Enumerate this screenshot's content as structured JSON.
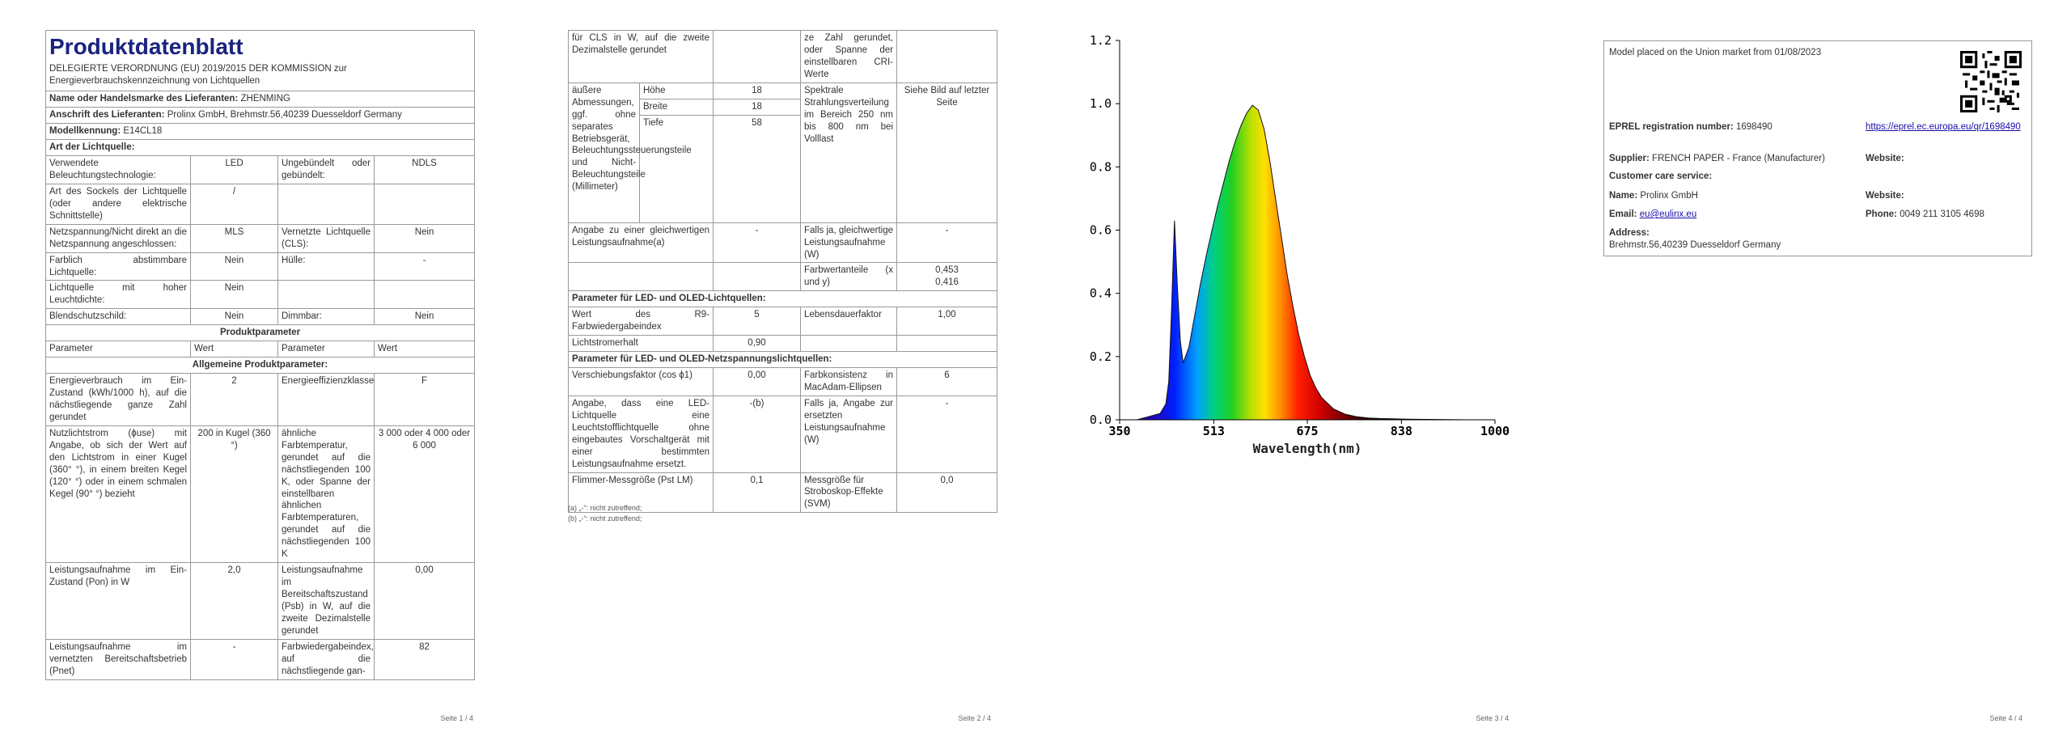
{
  "page1": {
    "title": "Produktdatenblatt",
    "subtitle": "DELEGIERTE VERORDNUNG (EU) 2019/2015 DER KOMMISSION zur Energieverbrauchskennzeichnung von Lichtquellen",
    "supplier_name_label": "Name oder Handelsmarke des Lieferanten:",
    "supplier_name_value": "ZHENMING",
    "supplier_address_label": "Anschrift des Lieferanten:",
    "supplier_address_value": "Prolinx GmbH, Brehmstr.56,40239 Duesseldorf Germany",
    "model_label": "Modellkennung:",
    "model_value": "E14CL18",
    "type_heading": "Art der Lichtquelle:",
    "rows": [
      [
        "Verwendete Beleuchtungstechnologie:",
        "LED",
        "Ungebündelt oder gebündelt:",
        "NDLS"
      ],
      [
        "Art des Sockels der Lichtquelle (oder andere elektrische Schnittstelle)",
        "/",
        "",
        ""
      ],
      [
        "Netzspannung/Nicht direkt an die Netzspannung angeschlossen:",
        "MLS",
        "Vernetzte Lichtquelle (CLS):",
        "Nein"
      ],
      [
        "Farblich abstimmbare Lichtquelle:",
        "Nein",
        "Hülle:",
        "-"
      ],
      [
        "Lichtquelle mit hoher Leuchtdichte:",
        "Nein",
        "",
        ""
      ],
      [
        "Blendschutzschild:",
        "Nein",
        "Dimmbar:",
        "Nein"
      ]
    ],
    "product_params_heading": "Produktparameter",
    "col_headers": [
      "Parameter",
      "Wert",
      "Parameter",
      "Wert"
    ],
    "general_heading": "Allgemeine Produktparameter:",
    "params": [
      [
        "Energieverbrauch im Ein-Zustand (kWh/1000 h), auf die nächstliegende ganze Zahl gerundet",
        "2",
        "Energieeffizienzklasse",
        "F"
      ],
      [
        "Nutzlichtstrom (ϕuse) mit Angabe, ob sich der Wert auf den Lichtstrom in einer Kugel (360° °), in einem breiten Kegel (120° °) oder in einem schmalen Kegel (90° °) bezieht",
        "200 in Kugel (360 °)",
        "ähnliche Farbtemperatur, gerundet auf die nächstliegenden 100 K, oder Spanne der einstellbaren ähnlichen Farbtemperaturen, gerundet auf die nächstliegenden 100 K",
        "3 000 oder 4 000 oder 6 000"
      ],
      [
        "Leistungsaufnahme im Ein-Zustand (Pon) in W",
        "2,0",
        "Leistungsaufnahme im Bereitschaftszustand (Psb) in W, auf die zweite Dezimalstelle gerundet",
        "0,00"
      ],
      [
        "Leistungsaufnahme im vernetzten Bereitschaftsbetrieb (Pnet)",
        "-",
        "Farbwiedergabeindex, auf die nächstliegende gan-",
        "82"
      ]
    ],
    "page_number": "Seite 1 / 4"
  },
  "page2": {
    "top_left": "für CLS in W, auf die zweite Dezimalstelle gerundet",
    "top_right": "ze Zahl gerundet, oder Spanne der einstellbaren CRI-Werte",
    "dims_label": "äußere Abmessungen, ggf. ohne separates Betriebsgerät, Beleuchtungssteuerungsteile und Nicht-Beleuchtungsteile (Millimeter)",
    "dims": [
      [
        "Höhe",
        "18"
      ],
      [
        "Breite",
        "18"
      ],
      [
        "Tiefe",
        "58"
      ]
    ],
    "spectral_label": "Spektrale Strahlungsverteilung im Bereich 250 nm bis 800 nm bei Volllast",
    "spectral_value": "Siehe Bild auf letzter Seite",
    "equiv_label": "Angabe zu einer gleichwertigen Leistungsaufnahme(a)",
    "equiv_value": "-",
    "equiv2_label": "Falls ja, gleichwertige Leistungsaufnahme (W)",
    "equiv2_value": "-",
    "chroma_label": "Farbwertanteile (x und y)",
    "chroma_value": "0,453\n0,416",
    "led_heading": "Parameter für LED- und OLED-Lichtquellen:",
    "r9_label": "Wert des R9-Farbwiedergabeindex",
    "r9_value": "5",
    "life_label": "Lebensdauerfaktor",
    "life_value": "1,00",
    "maint_label": "Lichtstromerhalt",
    "maint_value": "0,90",
    "mains_heading": "Parameter für LED- und OLED-Netzspannungslichtquellen:",
    "cos_label": "Verschiebungsfaktor (cos ϕ1)",
    "cos_value": "0,00",
    "macadam_label": "Farbkonsistenz in MacAdam-Ellipsen",
    "macadam_value": "6",
    "replace_label": "Angabe, dass eine LED-Lichtquelle eine Leuchtstofflichtquelle ohne eingebautes Vorschaltgerät mit einer bestimmten Leistungsaufnahme ersetzt.",
    "replace_value": "-(b)",
    "replace2_label": "Falls ja, Angabe zur ersetzten Leistungsaufnahme (W)",
    "replace2_value": "-",
    "flicker_label": "Flimmer-Messgröße (Pst LM)",
    "flicker_value": "0,1",
    "svm_label": "Messgröße für Stroboskop-Effekte (SVM)",
    "svm_value": "0,0",
    "footnote_a": "(a) „-“: nicht zutreffend;",
    "footnote_b": "(b) „-“: nicht zutreffend;",
    "page_number": "Seite 2 / 4"
  },
  "page3": {
    "chart_data": {
      "type": "area",
      "xlabel": "Wavelength(nm)",
      "ylabel": "",
      "x_ticks": [
        "350",
        "513",
        "675",
        "838",
        "1000"
      ],
      "y_ticks": [
        "0.0",
        "0.2",
        "0.4",
        "0.6",
        "0.8",
        "1.0",
        "1.2"
      ],
      "xlim": [
        350,
        1000
      ],
      "ylim": [
        0,
        1.2
      ],
      "x": [
        350,
        380,
        400,
        420,
        430,
        435,
        440,
        445,
        450,
        455,
        460,
        470,
        480,
        490,
        500,
        510,
        520,
        530,
        540,
        550,
        560,
        570,
        580,
        590,
        600,
        610,
        620,
        630,
        640,
        650,
        660,
        670,
        680,
        690,
        700,
        720,
        740,
        760,
        780,
        800,
        850,
        900,
        950,
        1000
      ],
      "y": [
        0.0,
        0.0,
        0.01,
        0.02,
        0.05,
        0.12,
        0.35,
        0.63,
        0.42,
        0.25,
        0.18,
        0.23,
        0.33,
        0.43,
        0.52,
        0.6,
        0.68,
        0.75,
        0.82,
        0.88,
        0.93,
        0.97,
        0.995,
        0.98,
        0.92,
        0.82,
        0.7,
        0.58,
        0.46,
        0.36,
        0.27,
        0.2,
        0.14,
        0.1,
        0.07,
        0.035,
        0.018,
        0.01,
        0.006,
        0.004,
        0.002,
        0.001,
        0.0,
        0.0
      ],
      "grid": false
    },
    "page_number": "Seite 3 / 4"
  },
  "page4": {
    "market_text": "Model placed on the Union market from 01/08/2023",
    "eprel_label": "EPREL registration number:",
    "eprel_value": "1698490",
    "eprel_link": "https://eprel.ec.europa.eu/qr/1698490",
    "supplier_label": "Supplier:",
    "supplier_value": "FRENCH PAPER - France (Manufacturer)",
    "website_label": "Website:",
    "care_label": "Customer care service:",
    "name_label": "Name:",
    "name_value": "Prolinx GmbH",
    "website2_label": "Website:",
    "email_label": "Email:",
    "email_value": "eu@eulinx.eu",
    "phone_label": "Phone:",
    "phone_value": "0049 211 3105 4698",
    "address_label": "Address:",
    "address_value": "Brehmstr.56,40239 Duesseldorf Germany",
    "page_number": "Seite 4 / 4"
  }
}
